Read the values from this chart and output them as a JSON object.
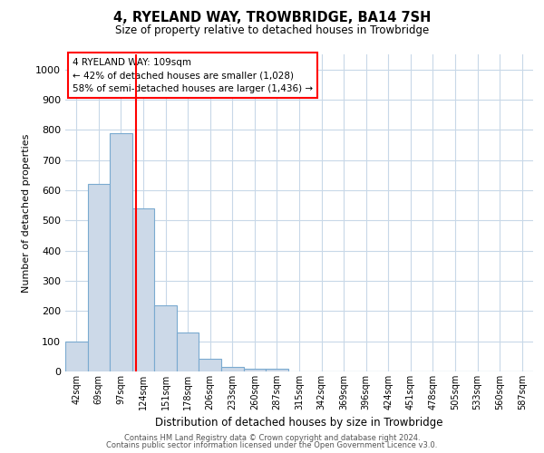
{
  "title": "4, RYELAND WAY, TROWBRIDGE, BA14 7SH",
  "subtitle": "Size of property relative to detached houses in Trowbridge",
  "xlabel": "Distribution of detached houses by size in Trowbridge",
  "ylabel": "Number of detached properties",
  "bar_categories": [
    "42sqm",
    "69sqm",
    "97sqm",
    "124sqm",
    "151sqm",
    "178sqm",
    "206sqm",
    "233sqm",
    "260sqm",
    "287sqm",
    "315sqm",
    "342sqm",
    "369sqm",
    "396sqm",
    "424sqm",
    "451sqm",
    "478sqm",
    "505sqm",
    "533sqm",
    "560sqm",
    "587sqm"
  ],
  "bar_values": [
    100,
    620,
    790,
    540,
    220,
    130,
    42,
    15,
    10,
    10,
    0,
    0,
    0,
    0,
    0,
    0,
    0,
    0,
    0,
    0,
    0
  ],
  "bar_color": "#ccd9e8",
  "bar_edge_color": "#7aaad0",
  "bar_edge_width": 0.8,
  "red_line_x": 2.67,
  "annotation_line1": "4 RYELAND WAY: 109sqm",
  "annotation_line2": "← 42% of detached houses are smaller (1,028)",
  "annotation_line3": "58% of semi-detached houses are larger (1,436) →",
  "ylim": [
    0,
    1050
  ],
  "yticks": [
    0,
    100,
    200,
    300,
    400,
    500,
    600,
    700,
    800,
    900,
    1000
  ],
  "background_color": "#ffffff",
  "grid_color": "#c8d8e8",
  "footer_line1": "Contains HM Land Registry data © Crown copyright and database right 2024.",
  "footer_line2": "Contains public sector information licensed under the Open Government Licence v3.0."
}
